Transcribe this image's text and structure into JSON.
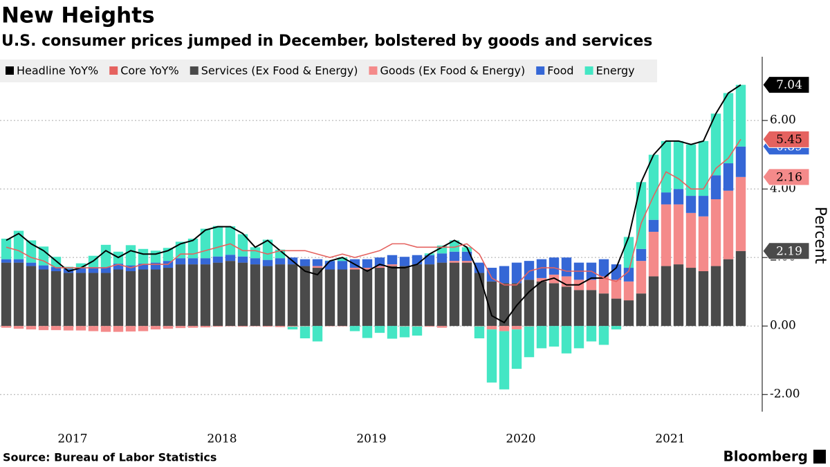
{
  "chart_data": {
    "type": "bar",
    "title": "New Heights",
    "subtitle": "U.S. consumer prices jumped in December, bolstered by goods and services",
    "y_label": "Percent",
    "source": "Source: Bureau of Labor Statistics",
    "brand": "Bloomberg",
    "categories": [
      null,
      null,
      null,
      null,
      null,
      "2017",
      null,
      null,
      null,
      null,
      null,
      null,
      null,
      null,
      null,
      null,
      null,
      "2018",
      null,
      null,
      null,
      null,
      null,
      null,
      null,
      null,
      null,
      null,
      null,
      "2019",
      null,
      null,
      null,
      null,
      null,
      null,
      null,
      null,
      null,
      null,
      null,
      "2020",
      null,
      null,
      null,
      null,
      null,
      null,
      null,
      null,
      null,
      null,
      null,
      "2021",
      null,
      null,
      null,
      null,
      null,
      null
    ],
    "ylim": [
      -2.5,
      7.8
    ],
    "yticks": [
      {
        "value": -2,
        "label": "-2.00"
      },
      {
        "value": 0,
        "label": "0.00"
      },
      {
        "value": 2,
        "label": "2.00"
      },
      {
        "value": 4,
        "label": "4.00"
      },
      {
        "value": 6,
        "label": "6.00"
      }
    ],
    "grid": true,
    "series": [
      {
        "name": "Headline YoY%",
        "type": "line",
        "color": "#000000",
        "label_last": true,
        "values": [
          2.5,
          2.7,
          2.4,
          2.2,
          1.9,
          1.6,
          1.7,
          1.9,
          2.2,
          2.0,
          2.2,
          2.1,
          2.1,
          2.2,
          2.4,
          2.5,
          2.8,
          2.9,
          2.9,
          2.7,
          2.3,
          2.5,
          2.2,
          1.9,
          1.6,
          1.5,
          1.9,
          2.0,
          1.8,
          1.6,
          1.8,
          1.7,
          1.7,
          1.8,
          2.1,
          2.3,
          2.5,
          2.3,
          1.5,
          0.3,
          0.1,
          0.6,
          1.0,
          1.3,
          1.4,
          1.2,
          1.2,
          1.4,
          1.4,
          1.7,
          2.6,
          4.2,
          5.0,
          5.4,
          5.4,
          5.3,
          5.4,
          6.2,
          6.8,
          7.04
        ]
      },
      {
        "name": "Core YoY%",
        "type": "line",
        "color": "#e5625f",
        "label_last": true,
        "values": [
          2.3,
          2.2,
          2.0,
          1.9,
          1.7,
          1.7,
          1.7,
          1.7,
          1.7,
          1.8,
          1.7,
          1.8,
          1.8,
          1.8,
          2.1,
          2.1,
          2.2,
          2.3,
          2.4,
          2.2,
          2.2,
          2.1,
          2.2,
          2.2,
          2.2,
          2.1,
          2.0,
          2.1,
          2.0,
          2.1,
          2.2,
          2.4,
          2.4,
          2.3,
          2.3,
          2.3,
          2.3,
          2.4,
          2.1,
          1.4,
          1.2,
          1.2,
          1.6,
          1.7,
          1.7,
          1.6,
          1.6,
          1.6,
          1.4,
          1.3,
          1.6,
          3.0,
          3.8,
          4.5,
          4.3,
          4.0,
          4.0,
          4.6,
          4.9,
          5.45
        ]
      },
      {
        "name": "Services (Ex Food & Energy)",
        "color": "#4a4a4a",
        "label_last": true,
        "values": [
          1.85,
          1.85,
          1.75,
          1.65,
          1.6,
          1.55,
          1.55,
          1.55,
          1.55,
          1.65,
          1.6,
          1.65,
          1.65,
          1.7,
          1.8,
          1.8,
          1.8,
          1.85,
          1.9,
          1.85,
          1.8,
          1.75,
          1.8,
          1.8,
          1.75,
          1.7,
          1.65,
          1.65,
          1.65,
          1.65,
          1.7,
          1.75,
          1.75,
          1.8,
          1.8,
          1.85,
          1.85,
          1.85,
          1.55,
          1.3,
          1.25,
          1.25,
          1.35,
          1.3,
          1.25,
          1.15,
          1.05,
          1.05,
          0.95,
          0.8,
          0.75,
          0.95,
          1.45,
          1.75,
          1.8,
          1.7,
          1.6,
          1.75,
          1.95,
          2.19
        ]
      },
      {
        "name": "Goods (Ex Food & Energy)",
        "color": "#f48a8a",
        "label_last": true,
        "values": [
          -0.05,
          -0.08,
          -0.1,
          -0.12,
          -0.12,
          -0.13,
          -0.13,
          -0.15,
          -0.17,
          -0.17,
          -0.16,
          -0.15,
          -0.1,
          -0.08,
          -0.06,
          -0.05,
          -0.04,
          -0.02,
          -0.01,
          -0.02,
          -0.01,
          -0.02,
          -0.03,
          -0.02,
          -0.01,
          0.05,
          -0.01,
          -0.01,
          0.05,
          0.05,
          0.05,
          0.05,
          -0.01,
          -0.01,
          -0.02,
          -0.05,
          0.05,
          0.05,
          -0.01,
          -0.1,
          -0.15,
          -0.1,
          -0.01,
          0.1,
          0.25,
          0.3,
          0.3,
          0.3,
          0.5,
          0.55,
          0.55,
          0.95,
          1.3,
          1.8,
          1.75,
          1.6,
          1.6,
          1.95,
          2.0,
          2.16
        ]
      },
      {
        "name": "Food",
        "color": "#3567d6",
        "label_last": true,
        "values": [
          0.1,
          0.1,
          0.1,
          0.12,
          0.12,
          0.12,
          0.15,
          0.17,
          0.17,
          0.17,
          0.17,
          0.17,
          0.2,
          0.2,
          0.18,
          0.18,
          0.18,
          0.18,
          0.18,
          0.18,
          0.18,
          0.18,
          0.18,
          0.2,
          0.2,
          0.2,
          0.25,
          0.25,
          0.25,
          0.25,
          0.25,
          0.27,
          0.27,
          0.27,
          0.27,
          0.27,
          0.27,
          0.27,
          0.3,
          0.4,
          0.5,
          0.6,
          0.55,
          0.55,
          0.5,
          0.55,
          0.5,
          0.5,
          0.5,
          0.45,
          0.4,
          0.35,
          0.35,
          0.35,
          0.45,
          0.5,
          0.6,
          0.7,
          0.8,
          0.89
        ]
      },
      {
        "name": "Energy",
        "color": "#44e6c4",
        "label_last": false,
        "values": [
          0.6,
          0.83,
          0.65,
          0.55,
          0.3,
          0.06,
          0.13,
          0.33,
          0.65,
          0.35,
          0.59,
          0.43,
          0.35,
          0.38,
          0.48,
          0.57,
          0.86,
          0.89,
          0.83,
          0.65,
          0.32,
          0.59,
          0.25,
          -0.08,
          -0.35,
          -0.45,
          0.01,
          0.1,
          -0.15,
          -0.35,
          -0.2,
          -0.37,
          -0.32,
          -0.27,
          0.05,
          0.23,
          0.33,
          0.13,
          -0.35,
          -1.55,
          -1.7,
          -1.15,
          -0.9,
          -0.65,
          -0.6,
          -0.8,
          -0.65,
          -0.45,
          -0.55,
          -0.1,
          0.9,
          1.95,
          1.9,
          1.5,
          1.4,
          1.5,
          1.6,
          1.8,
          2.05,
          1.8
        ]
      }
    ]
  }
}
